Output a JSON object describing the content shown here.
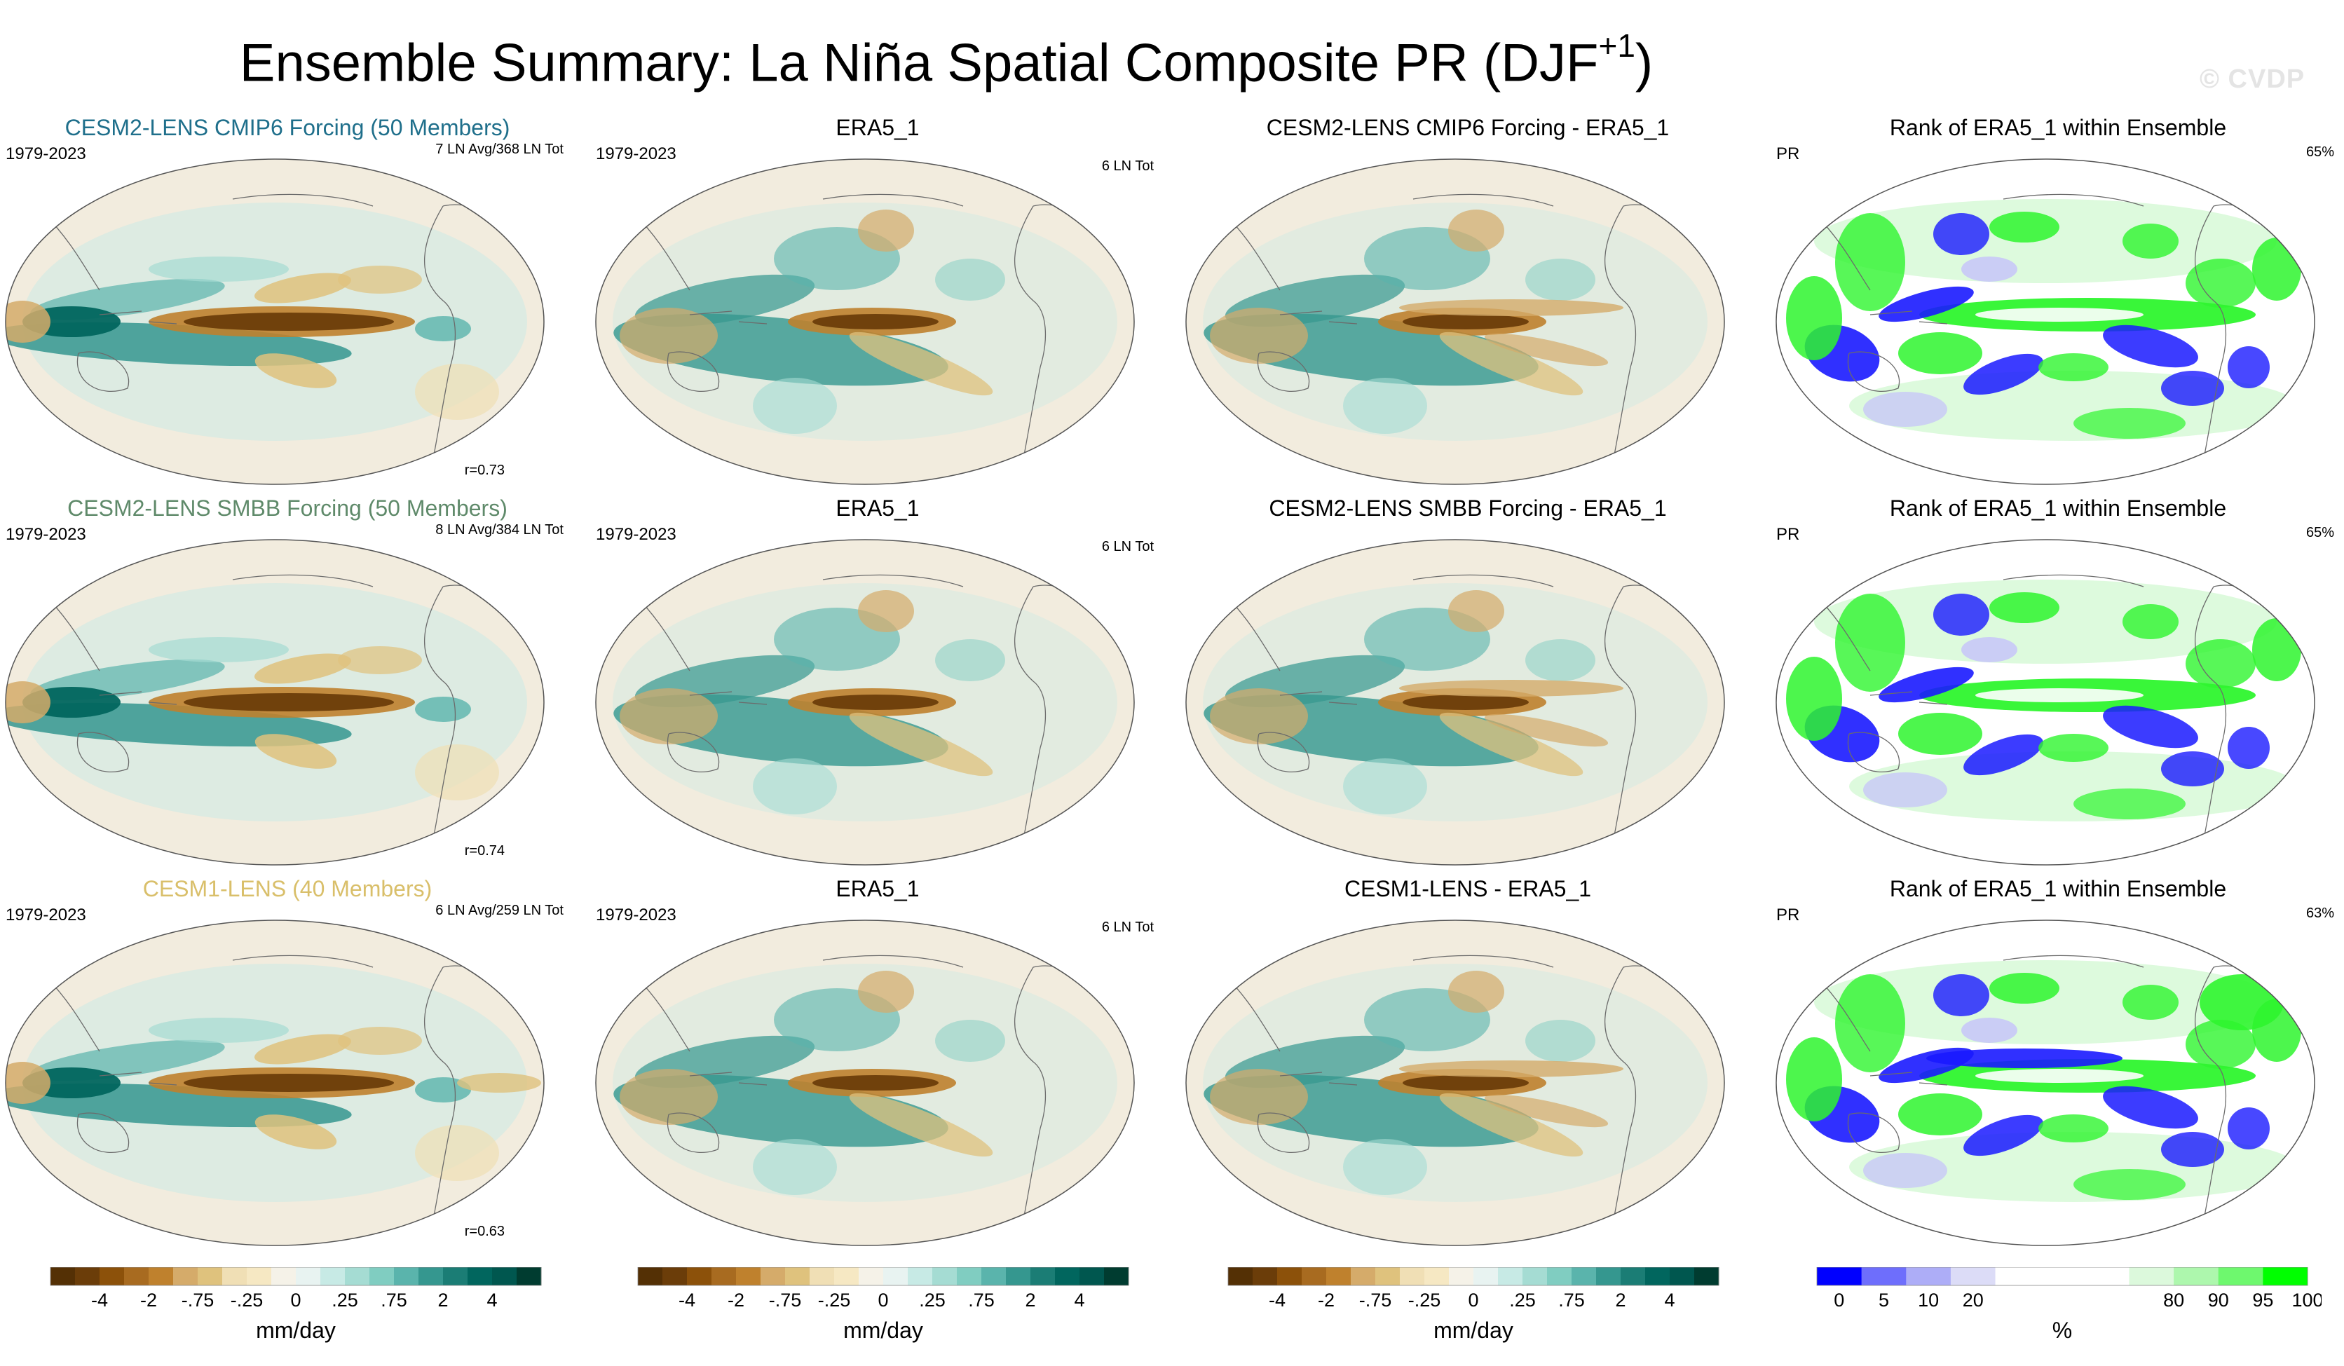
{
  "title": {
    "main": "Ensemble Summary: La Niña Spatial Composite PR (DJF",
    "sup": "+1",
    "close": ")"
  },
  "watermark": "© CVDP",
  "rows": [
    {
      "model": {
        "title": "CESM2-LENS CMIP6 Forcing (50 Members)",
        "title_color": "#1f6f8b",
        "years": "1979-2023",
        "counts": "7 LN Avg/368 LN Tot",
        "r": "r=0.73"
      },
      "obs": {
        "title": "ERA5_1",
        "years": "1979-2023",
        "counts": "6 LN Tot"
      },
      "diff": {
        "title": "CESM2-LENS CMIP6 Forcing - ERA5_1"
      },
      "rank": {
        "title": "Rank of ERA5_1 within Ensemble",
        "var": "PR",
        "pct": "65%"
      }
    },
    {
      "model": {
        "title": "CESM2-LENS SMBB Forcing (50 Members)",
        "title_color": "#5f8a6a",
        "years": "1979-2023",
        "counts": "8 LN Avg/384 LN Tot",
        "r": "r=0.74"
      },
      "obs": {
        "title": "ERA5_1",
        "years": "1979-2023",
        "counts": "6 LN Tot"
      },
      "diff": {
        "title": "CESM2-LENS SMBB Forcing - ERA5_1"
      },
      "rank": {
        "title": "Rank of ERA5_1 within Ensemble",
        "var": "PR",
        "pct": "65%"
      }
    },
    {
      "model": {
        "title": "CESM1-LENS (40 Members)",
        "title_color": "#d9bf6a",
        "years": "1979-2023",
        "counts": "6 LN Avg/259 LN Tot",
        "r": "r=0.63"
      },
      "obs": {
        "title": "ERA5_1",
        "years": "1979-2023",
        "counts": "6 LN Tot"
      },
      "diff": {
        "title": "CESM1-LENS - ERA5_1"
      },
      "rank": {
        "title": "Rank of ERA5_1 within Ensemble",
        "var": "PR",
        "pct": "63%"
      }
    }
  ],
  "colorbars": {
    "pr": {
      "unit": "mm/day",
      "labels": [
        "-4",
        "-2",
        "-.75",
        "-.25",
        "0",
        ".25",
        ".75",
        "2",
        "4"
      ],
      "colors": [
        "#543005",
        "#6b3d09",
        "#8c510a",
        "#a86b20",
        "#bf812d",
        "#d5ab6a",
        "#dfc27d",
        "#f0dfb5",
        "#f6e8c3",
        "#f5f2e8",
        "#e8f3f1",
        "#c7eae5",
        "#a5dcd3",
        "#80cdc1",
        "#5ab4ac",
        "#35978f",
        "#1b7d75",
        "#01665e",
        "#00574f",
        "#003c30"
      ]
    },
    "rank": {
      "unit": "%",
      "labels": [
        "0",
        "5",
        "10",
        "20",
        "80",
        "90",
        "95",
        "100"
      ],
      "colors": [
        "#0000ff",
        "#6e6efc",
        "#adadf7",
        "#dcdcf7",
        "#ffffff",
        "#ffffff",
        "#ffffff",
        "#dcf9dc",
        "#adf7ad",
        "#6ef86e",
        "#00ff00"
      ]
    }
  },
  "chart_data": [
    {
      "type": "heatmap",
      "title": "CESM2-LENS CMIP6 Forcing (50 Members)",
      "projection": "Robinson (Pacific-centered)",
      "variable": "PR",
      "units": "mm/day",
      "period": "1979-2023",
      "pattern_correlation": 0.73,
      "summary": "dry equatorial central/east Pacific; wet Maritime Continent and off-equatorial bands"
    },
    {
      "type": "heatmap",
      "title": "ERA5_1",
      "projection": "Robinson (Pacific-centered)",
      "variable": "PR",
      "units": "mm/day",
      "period": "1979-2023"
    },
    {
      "type": "heatmap",
      "title": "CESM2-LENS CMIP6 Forcing - ERA5_1",
      "projection": "Robinson (Pacific-centered)",
      "variable": "PR",
      "units": "mm/day"
    },
    {
      "type": "heatmap",
      "title": "Rank of ERA5_1 within Ensemble",
      "variable": "PR",
      "units": "%",
      "percent_within_10_90": 65
    },
    {
      "type": "heatmap",
      "title": "CESM2-LENS SMBB Forcing (50 Members)",
      "variable": "PR",
      "units": "mm/day",
      "period": "1979-2023",
      "pattern_correlation": 0.74
    },
    {
      "type": "heatmap",
      "title": "ERA5_1",
      "variable": "PR",
      "units": "mm/day",
      "period": "1979-2023"
    },
    {
      "type": "heatmap",
      "title": "CESM2-LENS SMBB Forcing - ERA5_1",
      "variable": "PR",
      "units": "mm/day"
    },
    {
      "type": "heatmap",
      "title": "Rank of ERA5_1 within Ensemble",
      "variable": "PR",
      "units": "%",
      "percent_within_10_90": 65
    },
    {
      "type": "heatmap",
      "title": "CESM1-LENS (40 Members)",
      "variable": "PR",
      "units": "mm/day",
      "period": "1979-2023",
      "pattern_correlation": 0.63
    },
    {
      "type": "heatmap",
      "title": "ERA5_1",
      "variable": "PR",
      "units": "mm/day",
      "period": "1979-2023"
    },
    {
      "type": "heatmap",
      "title": "CESM1-LENS - ERA5_1",
      "variable": "PR",
      "units": "mm/day"
    },
    {
      "type": "heatmap",
      "title": "Rank of ERA5_1 within Ensemble",
      "variable": "PR",
      "units": "%",
      "percent_within_10_90": 63
    }
  ]
}
